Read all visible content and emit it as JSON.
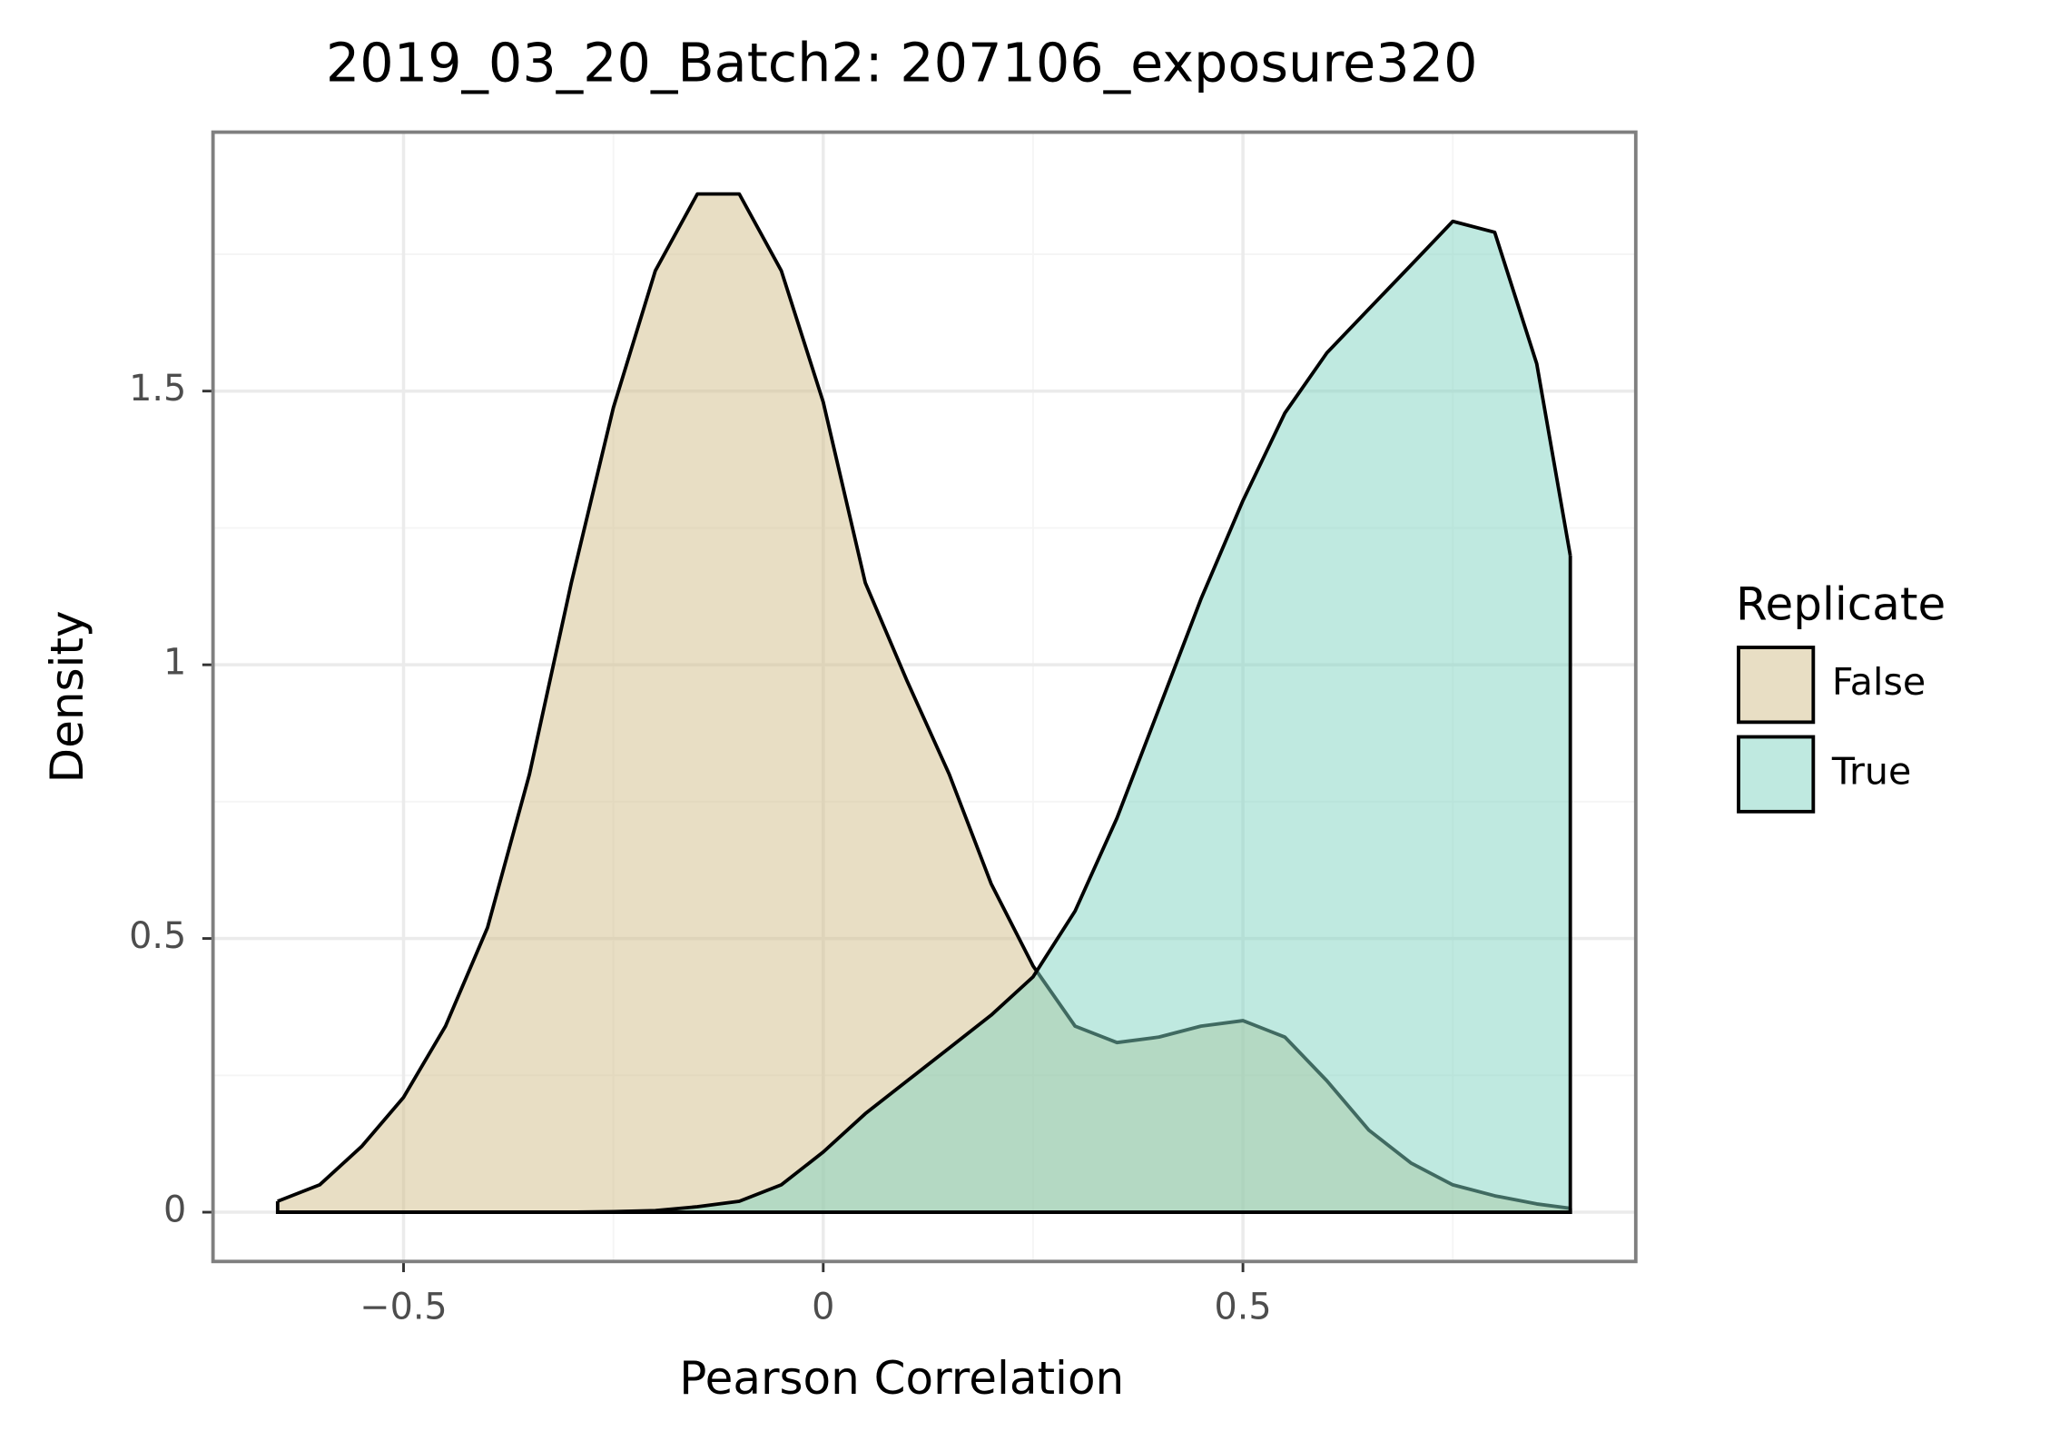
{
  "chart_data": {
    "type": "density",
    "title": "2019_03_20_Batch2: 207106_exposure320",
    "x_label": "Pearson Correlation",
    "y_label": "Density",
    "legend_title": "Replicate",
    "x": [
      -0.65,
      -0.6,
      -0.55,
      -0.5,
      -0.45,
      -0.4,
      -0.35,
      -0.3,
      -0.25,
      -0.2,
      -0.15,
      -0.1,
      -0.05,
      0,
      0.05,
      0.1,
      0.15,
      0.2,
      0.25,
      0.3,
      0.35,
      0.4,
      0.45,
      0.5,
      0.55,
      0.6,
      0.65,
      0.7,
      0.75,
      0.8,
      0.85,
      0.89
    ],
    "series": [
      {
        "name": "False",
        "color": "#d2bd8a",
        "values": [
          0.02,
          0.05,
          0.12,
          0.21,
          0.34,
          0.52,
          0.8,
          1.15,
          1.47,
          1.72,
          1.86,
          1.86,
          1.72,
          1.48,
          1.15,
          0.97,
          0.8,
          0.6,
          0.45,
          0.34,
          0.31,
          0.32,
          0.34,
          0.35,
          0.32,
          0.24,
          0.15,
          0.09,
          0.05,
          0.03,
          0.015,
          0.007
        ]
      },
      {
        "name": "True",
        "color": "#80d3c1",
        "values": [
          0,
          0,
          0,
          0,
          0,
          0,
          0,
          0,
          0.001,
          0.003,
          0.01,
          0.02,
          0.05,
          0.11,
          0.18,
          0.24,
          0.3,
          0.36,
          0.43,
          0.55,
          0.72,
          0.92,
          1.12,
          1.3,
          1.46,
          1.57,
          1.65,
          1.73,
          1.81,
          1.79,
          1.55,
          1.2
        ]
      }
    ],
    "xlim": [
      -0.727,
      0.968
    ],
    "ylim": [
      -0.09,
      1.973
    ],
    "xticks": [
      {
        "value": -0.5,
        "label": "−0.5"
      },
      0,
      0.5
    ],
    "yticks": [
      0,
      0.5,
      1,
      1.5
    ],
    "grid": true,
    "fill_opacity": 0.5,
    "legend": "right"
  }
}
